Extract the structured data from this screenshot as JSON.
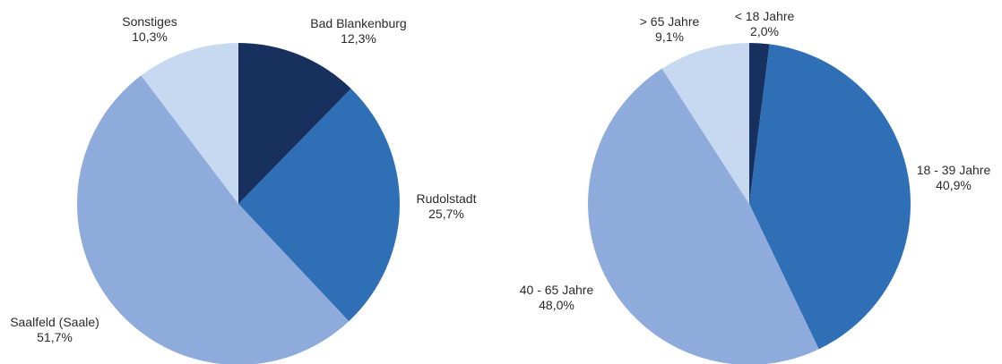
{
  "chart_data": [
    {
      "type": "pie",
      "start": "12 o'clock",
      "direction": "clockwise",
      "slices": [
        {
          "label": "Bad Blankenburg",
          "value": 12.3,
          "value_text": "12,3%",
          "color": "#17305e"
        },
        {
          "label": "Rudolstadt",
          "value": 25.7,
          "value_text": "25,7%",
          "color": "#2f6fb6"
        },
        {
          "label": "Saalfeld (Saale)",
          "value": 51.7,
          "value_text": "51,7%",
          "color": "#8fabdc"
        },
        {
          "label": "Sonstiges",
          "value": 10.3,
          "value_text": "10,3%",
          "color": "#c7d9f0"
        }
      ]
    },
    {
      "type": "pie",
      "start": "12 o'clock",
      "direction": "clockwise",
      "slices": [
        {
          "label": "< 18 Jahre",
          "value": 2.0,
          "value_text": "2,0%",
          "color": "#17305e"
        },
        {
          "label": "18 - 39 Jahre",
          "value": 40.9,
          "value_text": "40,9%",
          "color": "#2f6fb6"
        },
        {
          "label": "40 - 65 Jahre",
          "value": 48.0,
          "value_text": "48,0%",
          "color": "#8fabdc"
        },
        {
          "label": "> 65 Jahre",
          "value": 9.1,
          "value_text": "9,1%",
          "color": "#c7d9f0"
        }
      ]
    }
  ]
}
